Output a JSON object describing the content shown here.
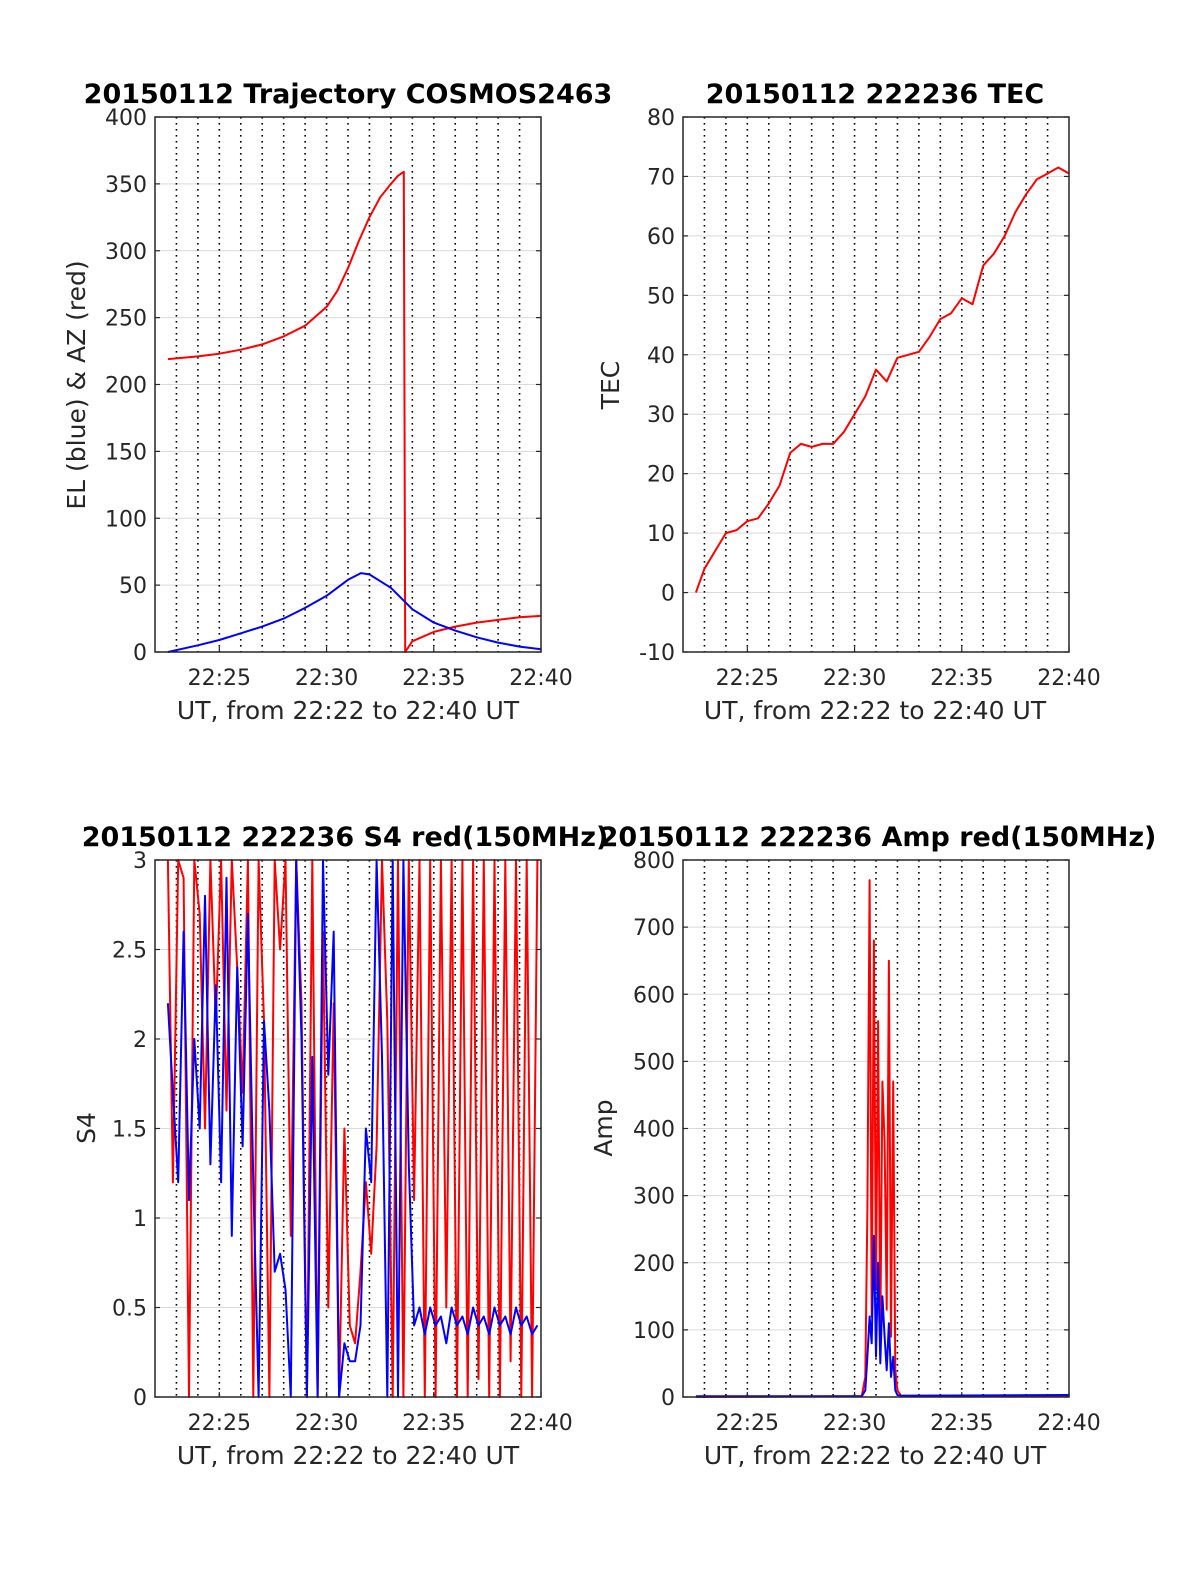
{
  "figure": {
    "background": "#ffffff",
    "grid_color": "#d9d9d9",
    "vgrid_color": "#000000"
  },
  "chart_data": [
    {
      "type": "line",
      "title": "20150112 Trajectory COSMOS2463",
      "xlabel": "UT, from 22:22 to 22:40 UT",
      "ylabel": "EL (blue) & AZ (red)",
      "xlim": [
        "22:22",
        "22:40"
      ],
      "ylim": [
        0,
        400
      ],
      "yticks": [
        0,
        50,
        100,
        150,
        200,
        250,
        300,
        350,
        400
      ],
      "xtick_labels": [
        "22:25",
        "22:30",
        "22:35",
        "22:40"
      ],
      "grid": "horizontal solid, vertical dotted each minute",
      "series": [
        {
          "color": "#ff0000",
          "x": [
            "22:22:36",
            "22:24",
            "22:25",
            "22:26",
            "22:27",
            "22:28",
            "22:29",
            "22:30",
            "22:30:30",
            "22:31",
            "22:31:30",
            "22:32",
            "22:32:30",
            "22:33",
            "22:33:20",
            "22:33:36",
            "22:33:40",
            "22:34",
            "22:35",
            "22:36",
            "22:37",
            "22:38",
            "22:39",
            "22:40"
          ],
          "values": [
            219,
            221,
            223,
            226,
            230,
            236,
            244,
            258,
            270,
            287,
            307,
            325,
            340,
            350,
            356,
            359,
            0,
            8,
            15,
            19,
            22,
            24,
            26,
            27
          ]
        },
        {
          "color": "#0000ff",
          "x": [
            "22:22:36",
            "22:24",
            "22:25",
            "22:26",
            "22:27",
            "22:28",
            "22:29",
            "22:30",
            "22:31",
            "22:31:36",
            "22:32",
            "22:33",
            "22:34",
            "22:35",
            "22:36",
            "22:37",
            "22:38",
            "22:39",
            "22:40"
          ],
          "values": [
            0,
            5,
            9,
            14,
            19,
            25,
            33,
            42,
            54,
            59,
            58,
            48,
            32,
            22,
            16,
            11,
            7,
            4,
            2
          ]
        }
      ]
    },
    {
      "type": "line",
      "title": "20150112 222236 TEC",
      "xlabel": "UT, from 22:22 to 22:40 UT",
      "ylabel": "TEC",
      "xlim": [
        "22:22",
        "22:40"
      ],
      "ylim": [
        -10,
        80
      ],
      "yticks": [
        -10,
        0,
        10,
        20,
        30,
        40,
        50,
        60,
        70,
        80
      ],
      "xtick_labels": [
        "22:25",
        "22:30",
        "22:35",
        "22:40"
      ],
      "grid": "horizontal solid, vertical dotted each minute",
      "series": [
        {
          "color": "#ff0000",
          "x": [
            "22:22:36",
            "22:23",
            "22:23:30",
            "22:24",
            "22:24:30",
            "22:25",
            "22:25:30",
            "22:26",
            "22:26:30",
            "22:27",
            "22:27:30",
            "22:28",
            "22:28:30",
            "22:29",
            "22:29:30",
            "22:30",
            "22:30:30",
            "22:31",
            "22:31:30",
            "22:32",
            "22:32:30",
            "22:33",
            "22:33:30",
            "22:34",
            "22:34:30",
            "22:35",
            "22:35:30",
            "22:36",
            "22:36:30",
            "22:37",
            "22:37:30",
            "22:38",
            "22:38:30",
            "22:39",
            "22:39:30",
            "22:40"
          ],
          "values": [
            0,
            4,
            7,
            10,
            10.5,
            12,
            12.5,
            15,
            18,
            23.5,
            25,
            24.5,
            25,
            25,
            27,
            30,
            33,
            37.5,
            35.5,
            39.5,
            40,
            40.5,
            43,
            46,
            47,
            49.5,
            48.5,
            55,
            57,
            60,
            64,
            67,
            69.5,
            70.5,
            71.5,
            70.5
          ]
        }
      ]
    },
    {
      "type": "line",
      "title": "20150112 222236 S4 red(150MHz)",
      "xlabel": "UT, from 22:22 to 22:40 UT",
      "ylabel": "S4",
      "xlim": [
        "22:22",
        "22:40"
      ],
      "ylim": [
        0,
        3
      ],
      "yticks": [
        0,
        0.5,
        1,
        1.5,
        2,
        2.5,
        3
      ],
      "ytick_labels": [
        "0",
        "0.5",
        "1",
        "1.5",
        "2",
        "2.5",
        "3"
      ],
      "xtick_labels": [
        "22:25",
        "22:30",
        "22:35",
        "22:40"
      ],
      "grid": "horizontal solid, vertical dotted each minute",
      "series": [
        {
          "color": "#ff0000",
          "x": [
            "22:22:36",
            "22:22:50",
            "22:23:05",
            "22:23:20",
            "22:23:35",
            "22:23:50",
            "22:24:05",
            "22:24:20",
            "22:24:35",
            "22:24:50",
            "22:25:05",
            "22:25:20",
            "22:25:35",
            "22:25:50",
            "22:26:05",
            "22:26:20",
            "22:26:35",
            "22:26:50",
            "22:27:05",
            "22:27:20",
            "22:27:35",
            "22:27:50",
            "22:28:05",
            "22:28:20",
            "22:28:35",
            "22:28:50",
            "22:29:05",
            "22:29:20",
            "22:29:35",
            "22:29:50",
            "22:30:05",
            "22:30:20",
            "22:30:35",
            "22:30:50",
            "22:31:05",
            "22:31:20",
            "22:31:35",
            "22:31:50",
            "22:32:05",
            "22:32:20",
            "22:32:35",
            "22:32:50",
            "22:33:05",
            "22:33:20",
            "22:33:35",
            "22:33:50",
            "22:34:05",
            "22:34:20",
            "22:34:35",
            "22:34:50",
            "22:35:05",
            "22:35:20",
            "22:35:35",
            "22:35:50",
            "22:36:05",
            "22:36:20",
            "22:36:35",
            "22:36:50",
            "22:37:05",
            "22:37:20",
            "22:37:35",
            "22:37:50",
            "22:38:05",
            "22:38:20",
            "22:38:35",
            "22:38:50",
            "22:39:05",
            "22:39:20",
            "22:39:35",
            "22:39:50"
          ],
          "values": [
            3,
            1.2,
            3,
            2.9,
            0,
            3,
            2.7,
            1.5,
            3,
            2.1,
            3,
            1.6,
            3,
            2.4,
            1.7,
            3,
            0,
            3,
            2.1,
            0,
            3,
            2.5,
            3,
            0.9,
            3,
            2.2,
            0,
            3,
            0,
            2.6,
            0.5,
            2.2,
            0,
            1.5,
            0.4,
            0.3,
            0.7,
            1.2,
            0.8,
            1.4,
            3,
            2.1,
            0,
            3,
            0,
            3,
            1.1,
            3,
            0,
            3,
            0,
            3,
            0.5,
            3,
            0,
            3,
            0,
            3,
            0.1,
            3,
            0,
            3,
            0,
            3,
            0.2,
            3,
            0,
            3,
            0,
            3
          ]
        },
        {
          "color": "#0000ff",
          "x": [
            "22:22:36",
            "22:22:50",
            "22:23:05",
            "22:23:20",
            "22:23:35",
            "22:23:50",
            "22:24:05",
            "22:24:20",
            "22:24:35",
            "22:24:50",
            "22:25:05",
            "22:25:20",
            "22:25:35",
            "22:25:50",
            "22:26:05",
            "22:26:20",
            "22:26:35",
            "22:26:50",
            "22:27:05",
            "22:27:20",
            "22:27:35",
            "22:27:50",
            "22:28:05",
            "22:28:20",
            "22:28:35",
            "22:28:50",
            "22:29:05",
            "22:29:20",
            "22:29:35",
            "22:29:50",
            "22:30:05",
            "22:30:20",
            "22:30:35",
            "22:30:50",
            "22:31:05",
            "22:31:20",
            "22:31:35",
            "22:31:50",
            "22:32:05",
            "22:32:20",
            "22:32:35",
            "22:32:50",
            "22:33:05",
            "22:33:20",
            "22:33:35",
            "22:33:50",
            "22:34:05",
            "22:34:20",
            "22:34:35",
            "22:34:50",
            "22:35:05",
            "22:35:20",
            "22:35:35",
            "22:35:50",
            "22:36:05",
            "22:36:20",
            "22:36:35",
            "22:36:50",
            "22:37:05",
            "22:37:20",
            "22:37:35",
            "22:37:50",
            "22:38:05",
            "22:38:20",
            "22:38:35",
            "22:38:50",
            "22:39:05",
            "22:39:20",
            "22:39:35",
            "22:39:50"
          ],
          "values": [
            2.2,
            1.7,
            1.2,
            2.6,
            1.1,
            2.0,
            1.5,
            2.8,
            1.3,
            2.3,
            1.2,
            2.9,
            0.9,
            2.4,
            1.4,
            2.7,
            1.2,
            0,
            2.1,
            1.6,
            0.7,
            0.8,
            0.6,
            0,
            3,
            2.0,
            0,
            1.9,
            0,
            3,
            1.8,
            2.6,
            0,
            0.3,
            0.2,
            0.2,
            0.4,
            1.5,
            1.2,
            3,
            1.9,
            0,
            3,
            0,
            3,
            1.3,
            0.4,
            0.5,
            0.35,
            0.5,
            0.4,
            0.45,
            0.3,
            0.5,
            0.4,
            0.45,
            0.35,
            0.5,
            0.4,
            0.45,
            0.35,
            0.5,
            0.4,
            0.45,
            0.35,
            0.5,
            0.4,
            0.45,
            0.35,
            0.4
          ]
        }
      ]
    },
    {
      "type": "line",
      "title": "20150112 222236 Amp red(150MHz)",
      "xlabel": "UT, from 22:22 to 22:40 UT",
      "ylabel": "Amp",
      "xlim": [
        "22:22",
        "22:40"
      ],
      "ylim": [
        0,
        800
      ],
      "yticks": [
        0,
        100,
        200,
        300,
        400,
        500,
        600,
        700,
        800
      ],
      "xtick_labels": [
        "22:25",
        "22:30",
        "22:35",
        "22:40"
      ],
      "grid": "horizontal solid, vertical dotted each minute",
      "series": [
        {
          "color": "#ff0000",
          "x": [
            "22:22:36",
            "22:30:20",
            "22:30:30",
            "22:30:36",
            "22:30:42",
            "22:30:48",
            "22:30:54",
            "22:31:00",
            "22:31:06",
            "22:31:12",
            "22:31:18",
            "22:31:24",
            "22:31:30",
            "22:31:36",
            "22:31:42",
            "22:31:48",
            "22:31:54",
            "22:32:00",
            "22:32:10",
            "22:40"
          ],
          "values": [
            0,
            1,
            30,
            280,
            770,
            120,
            680,
            160,
            560,
            90,
            470,
            380,
            130,
            650,
            90,
            470,
            40,
            10,
            2,
            2
          ]
        },
        {
          "color": "#0000ff",
          "x": [
            "22:22:36",
            "22:30:20",
            "22:30:30",
            "22:30:36",
            "22:30:42",
            "22:30:48",
            "22:30:54",
            "22:31:00",
            "22:31:06",
            "22:31:12",
            "22:31:18",
            "22:31:24",
            "22:31:30",
            "22:31:36",
            "22:31:42",
            "22:31:48",
            "22:31:54",
            "22:32:00",
            "22:32:10",
            "22:40"
          ],
          "values": [
            1,
            1,
            10,
            60,
            120,
            80,
            240,
            60,
            200,
            50,
            150,
            90,
            40,
            110,
            30,
            60,
            10,
            3,
            2,
            3
          ]
        }
      ]
    }
  ]
}
